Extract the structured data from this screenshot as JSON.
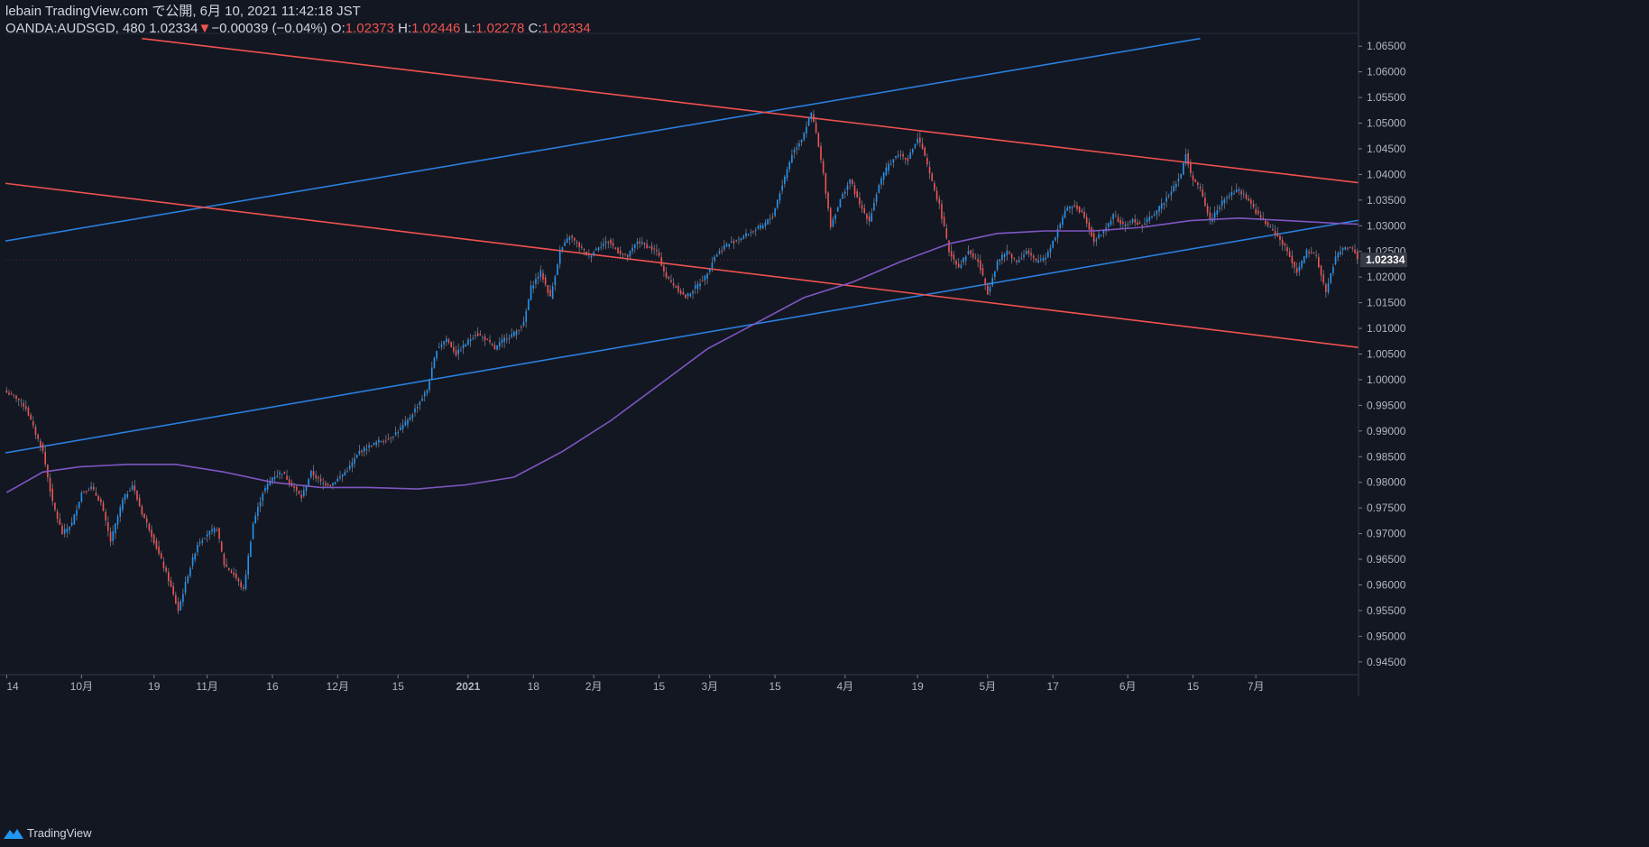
{
  "header": {
    "publish_line": "lebain TradingView.com で公開, 6月 10, 2021 11:42:18 JST",
    "symbol": "OANDA:AUDSGD, 480",
    "last_price": "1.02334",
    "change_arrow": "▼",
    "change": "−0.00039 (−0.04%)",
    "o_label": "O:",
    "o_value": "1.02373",
    "h_label": "H:",
    "h_value": "1.02446",
    "l_label": "L:",
    "l_value": "1.02278",
    "c_label": "C:",
    "c_value": "1.02334"
  },
  "footer": {
    "brand": "TradingView",
    "brand_icon": "tradingview-logo-icon"
  },
  "colors": {
    "background": "#131722",
    "bull": "#2196f3",
    "bear": "#ef5350",
    "ma": "#7e57c2",
    "trend_blue": "#2a7fde",
    "trend_red": "#f0524f",
    "axis_text": "#b2b5be",
    "price_tag": "#363a45"
  },
  "chart_data": {
    "type": "candlestick",
    "symbol": "OANDA:AUDSGD",
    "interval": "480",
    "ylim": [
      0.9425,
      1.0675
    ],
    "y_ticks": [
      "1.06500",
      "1.06000",
      "1.05500",
      "1.05000",
      "1.04500",
      "1.04000",
      "1.03500",
      "1.03000",
      "1.02500",
      "1.02000",
      "1.01500",
      "1.01000",
      "1.00500",
      "1.00000",
      "0.99500",
      "0.99000",
      "0.98500",
      "0.98000",
      "0.97500",
      "0.97000",
      "0.96500",
      "0.96000",
      "0.95500",
      "0.95000",
      "0.94500"
    ],
    "x_ticks": [
      "14",
      "10月",
      "19",
      "11月",
      "16",
      "12月",
      "15",
      "2021",
      "18",
      "2月",
      "15",
      "3月",
      "15",
      "4月",
      "19",
      "5月",
      "17",
      "6月",
      "15",
      "7月"
    ],
    "last_price_label": "1.02334",
    "last_price": 1.02334,
    "path_points": [
      [
        0,
        0.9975
      ],
      [
        4,
        0.9965
      ],
      [
        8,
        0.9945
      ],
      [
        12,
        0.9895
      ],
      [
        15,
        0.986
      ],
      [
        19,
        0.976
      ],
      [
        23,
        0.97
      ],
      [
        27,
        0.972
      ],
      [
        31,
        0.978
      ],
      [
        35,
        0.979
      ],
      [
        39,
        0.976
      ],
      [
        43,
        0.9685
      ],
      [
        48,
        0.9765
      ],
      [
        52,
        0.9795
      ],
      [
        56,
        0.974
      ],
      [
        59,
        0.971
      ],
      [
        63,
        0.966
      ],
      [
        67,
        0.961
      ],
      [
        71,
        0.955
      ],
      [
        75,
        0.962
      ],
      [
        79,
        0.968
      ],
      [
        83,
        0.97
      ],
      [
        87,
        0.971
      ],
      [
        90,
        0.964
      ],
      [
        94,
        0.962
      ],
      [
        98,
        0.959
      ],
      [
        102,
        0.972
      ],
      [
        106,
        0.978
      ],
      [
        110,
        0.981
      ],
      [
        114,
        0.982
      ],
      [
        118,
        0.9795
      ],
      [
        122,
        0.977
      ],
      [
        126,
        0.982
      ],
      [
        130,
        0.98
      ],
      [
        134,
        0.9795
      ],
      [
        138,
        0.981
      ],
      [
        142,
        0.983
      ],
      [
        146,
        0.986
      ],
      [
        150,
        0.987
      ],
      [
        154,
        0.988
      ],
      [
        158,
        0.9885
      ],
      [
        162,
        0.99
      ],
      [
        166,
        0.992
      ],
      [
        170,
        0.995
      ],
      [
        174,
        0.998
      ],
      [
        178,
        1.006
      ],
      [
        182,
        1.008
      ],
      [
        186,
        1.005
      ],
      [
        190,
        1.007
      ],
      [
        194,
        1.009
      ],
      [
        198,
        1.008
      ],
      [
        202,
        1.006
      ],
      [
        206,
        1.008
      ],
      [
        210,
        1.009
      ],
      [
        214,
        1.011
      ],
      [
        217,
        1.018
      ],
      [
        221,
        1.021
      ],
      [
        225,
        1.016
      ],
      [
        229,
        1.025
      ],
      [
        233,
        1.028
      ],
      [
        237,
        1.026
      ],
      [
        241,
        1.024
      ],
      [
        245,
        1.026
      ],
      [
        249,
        1.027
      ],
      [
        253,
        1.025
      ],
      [
        257,
        1.024
      ],
      [
        261,
        1.027
      ],
      [
        265,
        1.026
      ],
      [
        269,
        1.025
      ],
      [
        273,
        1.02
      ],
      [
        277,
        1.018
      ],
      [
        281,
        1.016
      ],
      [
        285,
        1.018
      ],
      [
        289,
        1.02
      ],
      [
        293,
        1.024
      ],
      [
        297,
        1.026
      ],
      [
        301,
        1.027
      ],
      [
        305,
        1.028
      ],
      [
        309,
        1.029
      ],
      [
        313,
        1.03
      ],
      [
        317,
        1.032
      ],
      [
        321,
        1.038
      ],
      [
        325,
        1.044
      ],
      [
        329,
        1.047
      ],
      [
        333,
        1.052
      ],
      [
        335,
        1.048
      ],
      [
        338,
        1.04
      ],
      [
        341,
        1.03
      ],
      [
        345,
        1.035
      ],
      [
        349,
        1.039
      ],
      [
        353,
        1.034
      ],
      [
        357,
        1.031
      ],
      [
        361,
        1.038
      ],
      [
        365,
        1.042
      ],
      [
        369,
        1.044
      ],
      [
        373,
        1.043
      ],
      [
        377,
        1.047
      ],
      [
        379,
        1.045
      ],
      [
        382,
        1.04
      ],
      [
        386,
        1.034
      ],
      [
        390,
        1.025
      ],
      [
        394,
        1.022
      ],
      [
        398,
        1.025
      ],
      [
        402,
        1.023
      ],
      [
        406,
        1.017
      ],
      [
        410,
        1.023
      ],
      [
        414,
        1.025
      ],
      [
        418,
        1.023
      ],
      [
        422,
        1.025
      ],
      [
        426,
        1.023
      ],
      [
        430,
        1.024
      ],
      [
        434,
        1.028
      ],
      [
        438,
        1.033
      ],
      [
        442,
        1.034
      ],
      [
        446,
        1.032
      ],
      [
        450,
        1.027
      ],
      [
        454,
        1.029
      ],
      [
        458,
        1.032
      ],
      [
        462,
        1.03
      ],
      [
        466,
        1.031
      ],
      [
        470,
        1.03
      ],
      [
        474,
        1.032
      ],
      [
        478,
        1.034
      ],
      [
        482,
        1.037
      ],
      [
        486,
        1.04
      ],
      [
        488,
        1.044
      ],
      [
        490,
        1.04
      ],
      [
        494,
        1.037
      ],
      [
        498,
        1.031
      ],
      [
        502,
        1.034
      ],
      [
        506,
        1.036
      ],
      [
        510,
        1.037
      ],
      [
        514,
        1.035
      ],
      [
        518,
        1.032
      ],
      [
        522,
        1.03
      ],
      [
        526,
        1.028
      ],
      [
        530,
        1.025
      ],
      [
        534,
        1.021
      ],
      [
        538,
        1.025
      ],
      [
        542,
        1.024
      ],
      [
        546,
        1.017
      ],
      [
        550,
        1.024
      ],
      [
        554,
        1.026
      ],
      [
        558,
        1.025
      ],
      [
        560,
        1.0234
      ]
    ],
    "moving_average": [
      [
        0,
        0.978
      ],
      [
        15,
        0.982
      ],
      [
        30,
        0.983
      ],
      [
        50,
        0.9835
      ],
      [
        70,
        0.9835
      ],
      [
        90,
        0.982
      ],
      [
        110,
        0.98
      ],
      [
        130,
        0.979
      ],
      [
        150,
        0.979
      ],
      [
        170,
        0.9787
      ],
      [
        190,
        0.9795
      ],
      [
        210,
        0.981
      ],
      [
        230,
        0.986
      ],
      [
        250,
        0.992
      ],
      [
        270,
        0.999
      ],
      [
        290,
        1.006
      ],
      [
        310,
        1.011
      ],
      [
        330,
        1.016
      ],
      [
        350,
        1.019
      ],
      [
        370,
        1.023
      ],
      [
        390,
        1.0265
      ],
      [
        410,
        1.0285
      ],
      [
        430,
        1.029
      ],
      [
        450,
        1.029
      ],
      [
        470,
        1.0297
      ],
      [
        490,
        1.031
      ],
      [
        510,
        1.0315
      ],
      [
        530,
        1.031
      ],
      [
        550,
        1.0305
      ],
      [
        560,
        1.0303
      ]
    ],
    "trendlines": [
      {
        "color": "blue",
        "from": [
          -1,
          1.027
        ],
        "to": [
          494,
          1.0665
        ]
      },
      {
        "color": "blue",
        "from": [
          -1,
          0.9857
        ],
        "to": [
          561,
          1.0312
        ]
      },
      {
        "color": "red",
        "from": [
          56,
          1.0665
        ],
        "to": [
          561,
          1.0383
        ]
      },
      {
        "color": "red",
        "from": [
          -1,
          1.0383
        ],
        "to": [
          561,
          1.0062
        ]
      }
    ]
  }
}
